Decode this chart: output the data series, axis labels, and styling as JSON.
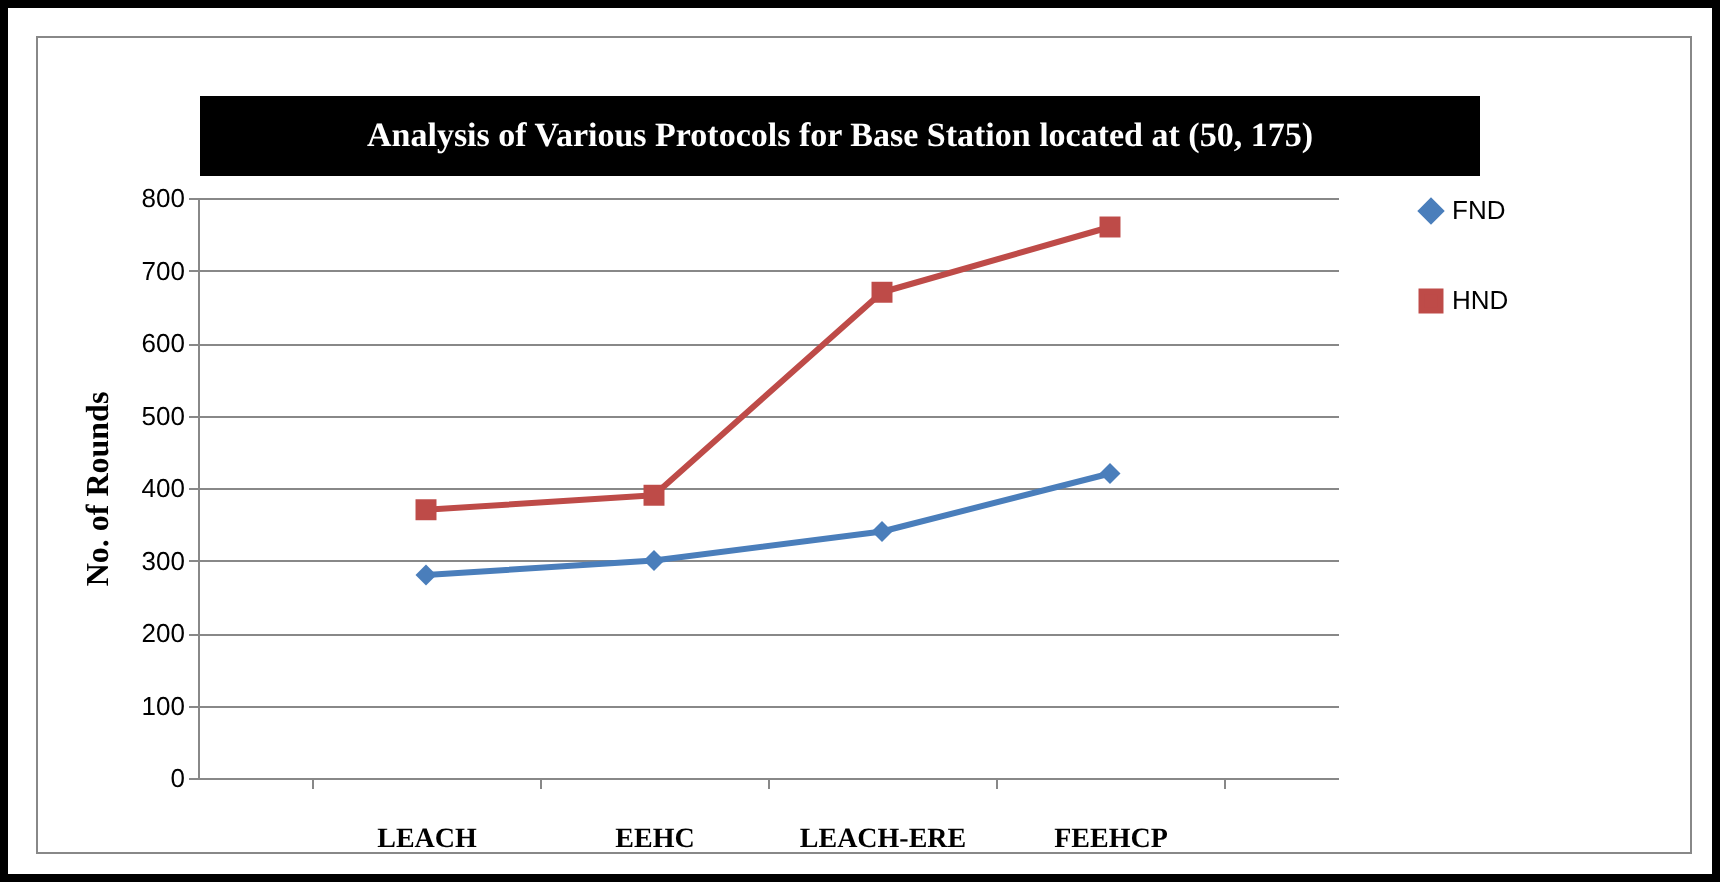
{
  "chart_data": {
    "type": "line",
    "title": "Analysis of Various Protocols for Base Station located at (50, 175)",
    "ylabel": "No. of Rounds",
    "categories": [
      "LEACH",
      "EEHC",
      "LEACH-ERE",
      "FEEHCP"
    ],
    "series": [
      {
        "name": "FND",
        "color": "#4a7ebb",
        "marker": "diamond",
        "values": [
          280,
          300,
          340,
          420
        ]
      },
      {
        "name": "HND",
        "color": "#be4b48",
        "marker": "square",
        "values": [
          370,
          390,
          670,
          760
        ]
      }
    ],
    "ylim": [
      0,
      800
    ],
    "yticks": [
      0,
      100,
      200,
      300,
      400,
      500,
      600,
      700,
      800
    ],
    "grid": "y",
    "legend": "right",
    "line_style": "solid"
  }
}
